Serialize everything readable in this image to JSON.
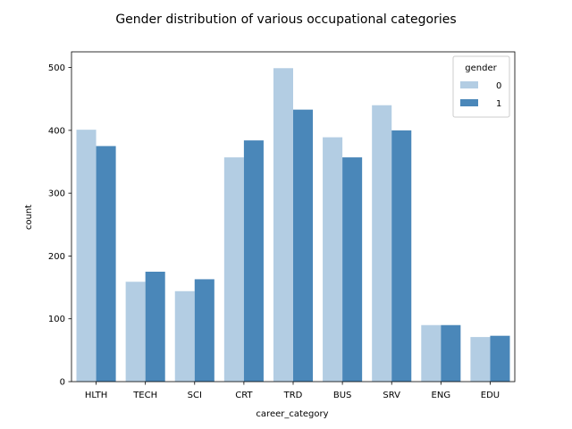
{
  "chart_data": {
    "type": "bar",
    "title": "Gender distribution of various occupational categories",
    "xlabel": "career_category",
    "ylabel": "count",
    "categories": [
      "HLTH",
      "TECH",
      "SCI",
      "CRT",
      "TRD",
      "BUS",
      "SRV",
      "ENG",
      "EDU"
    ],
    "series": [
      {
        "name": "0",
        "values": [
          401,
          159,
          144,
          357,
          499,
          389,
          440,
          90,
          71
        ],
        "color": "#b3cde3"
      },
      {
        "name": "1",
        "values": [
          375,
          175,
          163,
          384,
          433,
          357,
          400,
          90,
          73
        ],
        "color": "#4a87b9"
      }
    ],
    "ylim": [
      0,
      525
    ],
    "yticks": [
      0,
      100,
      200,
      300,
      400,
      500
    ],
    "grid": false,
    "legend": {
      "title": "gender",
      "placement": "top-right"
    }
  }
}
